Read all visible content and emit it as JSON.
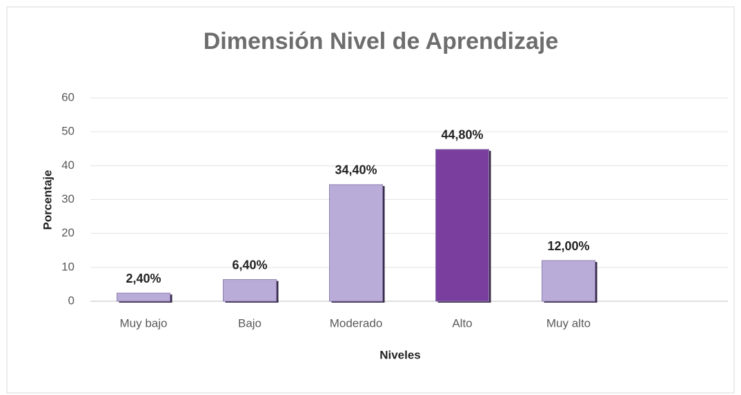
{
  "chart_data": {
    "type": "bar",
    "title": "Dimensión Nivel de Aprendizaje",
    "x_label": "Niveles",
    "y_label": "Porcentaje",
    "categories": [
      "Muy bajo",
      "Bajo",
      "Moderado",
      "Alto",
      "Muy alto",
      null
    ],
    "values": [
      2.4,
      6.4,
      34.4,
      44.8,
      12.0,
      null
    ],
    "value_labels": [
      "2,40%",
      "6,40%",
      "34,40%",
      "44,80%",
      "12,00%",
      null
    ],
    "colors": [
      "#b9acd8",
      "#b9acd8",
      "#b9acd8",
      "#7a3f9e",
      "#b9acd8",
      null
    ],
    "ylim": [
      0,
      60
    ],
    "yticks": [
      0,
      10,
      20,
      30,
      40,
      50,
      60
    ],
    "grid": true
  }
}
